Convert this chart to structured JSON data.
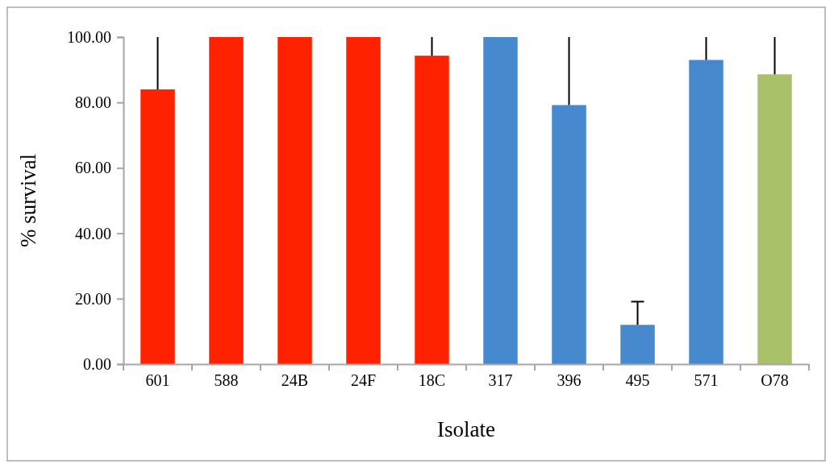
{
  "chart_data": {
    "type": "bar",
    "xlabel": "Isolate",
    "ylabel": "% survival",
    "categories": [
      "601",
      "588",
      "24B",
      "24F",
      "18C",
      "317",
      "396",
      "495",
      "571",
      "O78"
    ],
    "values": [
      84,
      100,
      100,
      100,
      94.3,
      100,
      79.2,
      12,
      93,
      88.6
    ],
    "colors": [
      "#ff2200",
      "#ff2200",
      "#ff2200",
      "#ff2200",
      "#ff2200",
      "#4689cf",
      "#4689cf",
      "#4689cf",
      "#4689cf",
      "#a9c26a"
    ],
    "errors": [
      [
        84,
        100
      ],
      null,
      null,
      null,
      [
        94.3,
        100
      ],
      null,
      [
        79.2,
        100
      ],
      [
        12,
        19.1
      ],
      [
        93,
        100
      ],
      [
        88.6,
        100
      ]
    ],
    "ylim": [
      0,
      100
    ],
    "yticks": [
      {
        "value": 0,
        "label": "0.00"
      },
      {
        "value": 20,
        "label": "20.00"
      },
      {
        "value": 40,
        "label": "40.00"
      },
      {
        "value": 60,
        "label": "60.00"
      },
      {
        "value": 80,
        "label": "80.00"
      },
      {
        "value": 100,
        "label": "100.00"
      }
    ],
    "grid": false
  }
}
